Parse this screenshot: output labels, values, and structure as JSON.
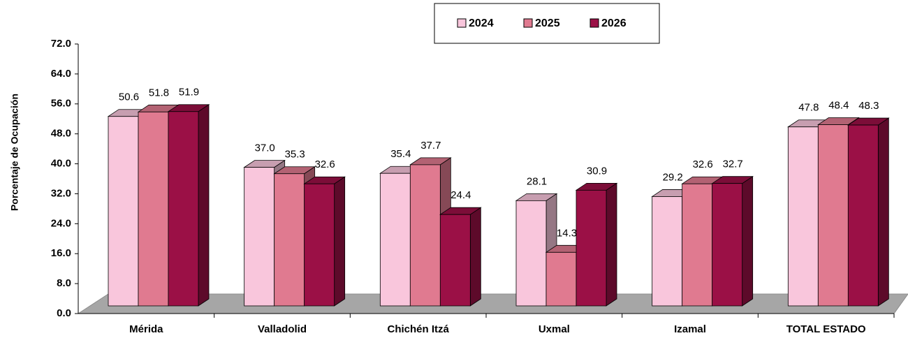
{
  "chart_data": {
    "type": "bar3d",
    "y_label": "Porcentaje de Ocupación",
    "categories": [
      "Mérida",
      "Valladolid",
      "Chichén Itzá",
      "Uxmal",
      "Izamal",
      "TOTAL ESTADO"
    ],
    "series": [
      {
        "name": "2024",
        "color": "#f9c6dc",
        "values": [
          50.6,
          37.0,
          35.4,
          28.1,
          29.2,
          47.8
        ],
        "value_labels": [
          "50.6",
          "37.0",
          "35.4",
          "28.1",
          "29.2",
          "47.8"
        ]
      },
      {
        "name": "2025",
        "color": "#e07a90",
        "values": [
          51.8,
          35.3,
          37.7,
          14.3,
          32.6,
          48.4
        ],
        "value_labels": [
          "51.8",
          "35.3",
          "37.7",
          "14.3",
          "32.6",
          "48.4"
        ]
      },
      {
        "name": "2026",
        "color": "#9b1046",
        "values": [
          51.9,
          32.6,
          24.4,
          30.9,
          32.7,
          48.3
        ],
        "value_labels": [
          "51.9",
          "32.6",
          "24.4",
          "30.9",
          "32.7",
          "48.3"
        ]
      }
    ],
    "ylim": [
      0,
      72
    ],
    "yticks": [
      {
        "value": 0,
        "label": "0.0"
      },
      {
        "value": 8,
        "label": "8.0"
      },
      {
        "value": 16,
        "label": "16.0"
      },
      {
        "value": 24,
        "label": "24.0"
      },
      {
        "value": 32,
        "label": "32.0"
      },
      {
        "value": 40,
        "label": "40.0"
      },
      {
        "value": 48,
        "label": "48.0"
      },
      {
        "value": 56,
        "label": "56.0"
      },
      {
        "value": 64,
        "label": "64.0"
      },
      {
        "value": 72,
        "label": "72.0"
      }
    ],
    "legend": "top"
  }
}
